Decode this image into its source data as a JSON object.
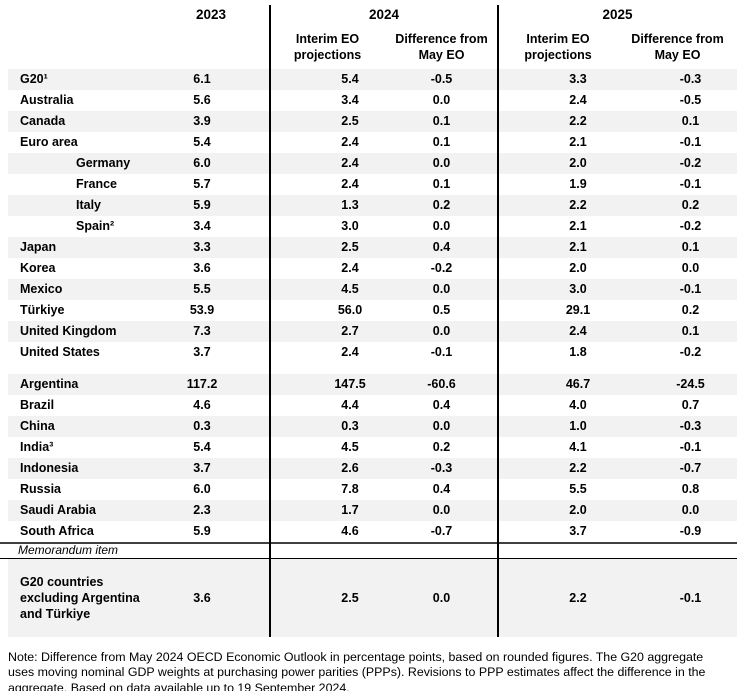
{
  "colors": {
    "stripe": "#f2f2f2",
    "divider": "#000000",
    "memo_top_border": "#404040"
  },
  "header": {
    "y2023": "2023",
    "y2024": "2024",
    "y2025": "2025",
    "interim_2024": "Interim EO projections",
    "diff_2024": "Difference from May EO",
    "interim_2025": "Interim EO projections",
    "diff_2025": "Difference from May EO"
  },
  "table": {
    "group1": [
      {
        "name": "G20¹",
        "indent": false,
        "v2023": "6.1",
        "p2024": "5.4",
        "d2024": "-0.5",
        "p2025": "3.3",
        "d2025": "-0.3"
      },
      {
        "name": "Australia",
        "indent": false,
        "v2023": "5.6",
        "p2024": "3.4",
        "d2024": "0.0",
        "p2025": "2.4",
        "d2025": "-0.5"
      },
      {
        "name": "Canada",
        "indent": false,
        "v2023": "3.9",
        "p2024": "2.5",
        "d2024": "0.1",
        "p2025": "2.2",
        "d2025": "0.1"
      },
      {
        "name": "Euro area",
        "indent": false,
        "v2023": "5.4",
        "p2024": "2.4",
        "d2024": "0.1",
        "p2025": "2.1",
        "d2025": "-0.1"
      },
      {
        "name": "Germany",
        "indent": true,
        "v2023": "6.0",
        "p2024": "2.4",
        "d2024": "0.0",
        "p2025": "2.0",
        "d2025": "-0.2"
      },
      {
        "name": "France",
        "indent": true,
        "v2023": "5.7",
        "p2024": "2.4",
        "d2024": "0.1",
        "p2025": "1.9",
        "d2025": "-0.1"
      },
      {
        "name": "Italy",
        "indent": true,
        "v2023": "5.9",
        "p2024": "1.3",
        "d2024": "0.2",
        "p2025": "2.2",
        "d2025": "0.2"
      },
      {
        "name": "Spain²",
        "indent": true,
        "v2023": "3.4",
        "p2024": "3.0",
        "d2024": "0.0",
        "p2025": "2.1",
        "d2025": "-0.2"
      },
      {
        "name": "Japan",
        "indent": false,
        "v2023": "3.3",
        "p2024": "2.5",
        "d2024": "0.4",
        "p2025": "2.1",
        "d2025": "0.1"
      },
      {
        "name": "Korea",
        "indent": false,
        "v2023": "3.6",
        "p2024": "2.4",
        "d2024": "-0.2",
        "p2025": "2.0",
        "d2025": "0.0"
      },
      {
        "name": "Mexico",
        "indent": false,
        "v2023": "5.5",
        "p2024": "4.5",
        "d2024": "0.0",
        "p2025": "3.0",
        "d2025": "-0.1"
      },
      {
        "name": "Türkiye",
        "indent": false,
        "v2023": "53.9",
        "p2024": "56.0",
        "d2024": "0.5",
        "p2025": "29.1",
        "d2025": "0.2"
      },
      {
        "name": "United Kingdom",
        "indent": false,
        "v2023": "7.3",
        "p2024": "2.7",
        "d2024": "0.0",
        "p2025": "2.4",
        "d2025": "0.1"
      },
      {
        "name": "United States",
        "indent": false,
        "v2023": "3.7",
        "p2024": "2.4",
        "d2024": "-0.1",
        "p2025": "1.8",
        "d2025": "-0.2"
      }
    ],
    "group2": [
      {
        "name": "Argentina",
        "indent": false,
        "v2023": "117.2",
        "p2024": "147.5",
        "d2024": "-60.6",
        "p2025": "46.7",
        "d2025": "-24.5"
      },
      {
        "name": "Brazil",
        "indent": false,
        "v2023": "4.6",
        "p2024": "4.4",
        "d2024": "0.4",
        "p2025": "4.0",
        "d2025": "0.7"
      },
      {
        "name": "China",
        "indent": false,
        "v2023": "0.3",
        "p2024": "0.3",
        "d2024": "0.0",
        "p2025": "1.0",
        "d2025": "-0.3"
      },
      {
        "name": "India³",
        "indent": false,
        "v2023": "5.4",
        "p2024": "4.5",
        "d2024": "0.2",
        "p2025": "4.1",
        "d2025": "-0.1"
      },
      {
        "name": "Indonesia",
        "indent": false,
        "v2023": "3.7",
        "p2024": "2.6",
        "d2024": "-0.3",
        "p2025": "2.2",
        "d2025": "-0.7"
      },
      {
        "name": "Russia",
        "indent": false,
        "v2023": "6.0",
        "p2024": "7.8",
        "d2024": "0.4",
        "p2025": "5.5",
        "d2025": "0.8"
      },
      {
        "name": "Saudi Arabia",
        "indent": false,
        "v2023": "2.3",
        "p2024": "1.7",
        "d2024": "0.0",
        "p2025": "2.0",
        "d2025": "0.0"
      },
      {
        "name": "South Africa",
        "indent": false,
        "v2023": "5.9",
        "p2024": "4.6",
        "d2024": "-0.7",
        "p2025": "3.7",
        "d2025": "-0.9"
      }
    ],
    "memorandum_label": "Memorandum item",
    "memorandum_row": {
      "name": "G20 countries excluding Argentina and Türkiye",
      "v2023": "3.6",
      "p2024": "2.5",
      "d2024": "0.0",
      "p2025": "2.2",
      "d2025": "-0.1"
    }
  },
  "note": "Note: Difference from May 2024 OECD Economic Outlook in percentage points, based on rounded figures. The G20 aggregate uses moving nominal GDP weights at purchasing power parities (PPPs). Revisions to PPP estimates affect the difference in the aggregate. Based on data available up to 19 September 2024.",
  "chart_data": {
    "type": "table",
    "columns": [
      "",
      "2023",
      "2024 Interim EO projections",
      "2024 Difference from May EO",
      "2025 Interim EO projections",
      "2025 Difference from May EO"
    ],
    "rows": [
      [
        "G20¹",
        6.1,
        5.4,
        -0.5,
        3.3,
        -0.3
      ],
      [
        "Australia",
        5.6,
        3.4,
        0.0,
        2.4,
        -0.5
      ],
      [
        "Canada",
        3.9,
        2.5,
        0.1,
        2.2,
        0.1
      ],
      [
        "Euro area",
        5.4,
        2.4,
        0.1,
        2.1,
        -0.1
      ],
      [
        "Germany",
        6.0,
        2.4,
        0.0,
        2.0,
        -0.2
      ],
      [
        "France",
        5.7,
        2.4,
        0.1,
        1.9,
        -0.1
      ],
      [
        "Italy",
        5.9,
        1.3,
        0.2,
        2.2,
        0.2
      ],
      [
        "Spain²",
        3.4,
        3.0,
        0.0,
        2.1,
        -0.2
      ],
      [
        "Japan",
        3.3,
        2.5,
        0.4,
        2.1,
        0.1
      ],
      [
        "Korea",
        3.6,
        2.4,
        -0.2,
        2.0,
        0.0
      ],
      [
        "Mexico",
        5.5,
        4.5,
        0.0,
        3.0,
        -0.1
      ],
      [
        "Türkiye",
        53.9,
        56.0,
        0.5,
        29.1,
        0.2
      ],
      [
        "United Kingdom",
        7.3,
        2.7,
        0.0,
        2.4,
        0.1
      ],
      [
        "United States",
        3.7,
        2.4,
        -0.1,
        1.8,
        -0.2
      ],
      [
        "Argentina",
        117.2,
        147.5,
        -60.6,
        46.7,
        -24.5
      ],
      [
        "Brazil",
        4.6,
        4.4,
        0.4,
        4.0,
        0.7
      ],
      [
        "China",
        0.3,
        0.3,
        0.0,
        1.0,
        -0.3
      ],
      [
        "India³",
        5.4,
        4.5,
        0.2,
        4.1,
        -0.1
      ],
      [
        "Indonesia",
        3.7,
        2.6,
        -0.3,
        2.2,
        -0.7
      ],
      [
        "Russia",
        6.0,
        7.8,
        0.4,
        5.5,
        0.8
      ],
      [
        "Saudi Arabia",
        2.3,
        1.7,
        0.0,
        2.0,
        0.0
      ],
      [
        "South Africa",
        5.9,
        4.6,
        -0.7,
        3.7,
        -0.9
      ],
      [
        "G20 countries excluding Argentina and Türkiye (Memorandum item)",
        3.6,
        2.5,
        0.0,
        2.2,
        -0.1
      ]
    ]
  }
}
